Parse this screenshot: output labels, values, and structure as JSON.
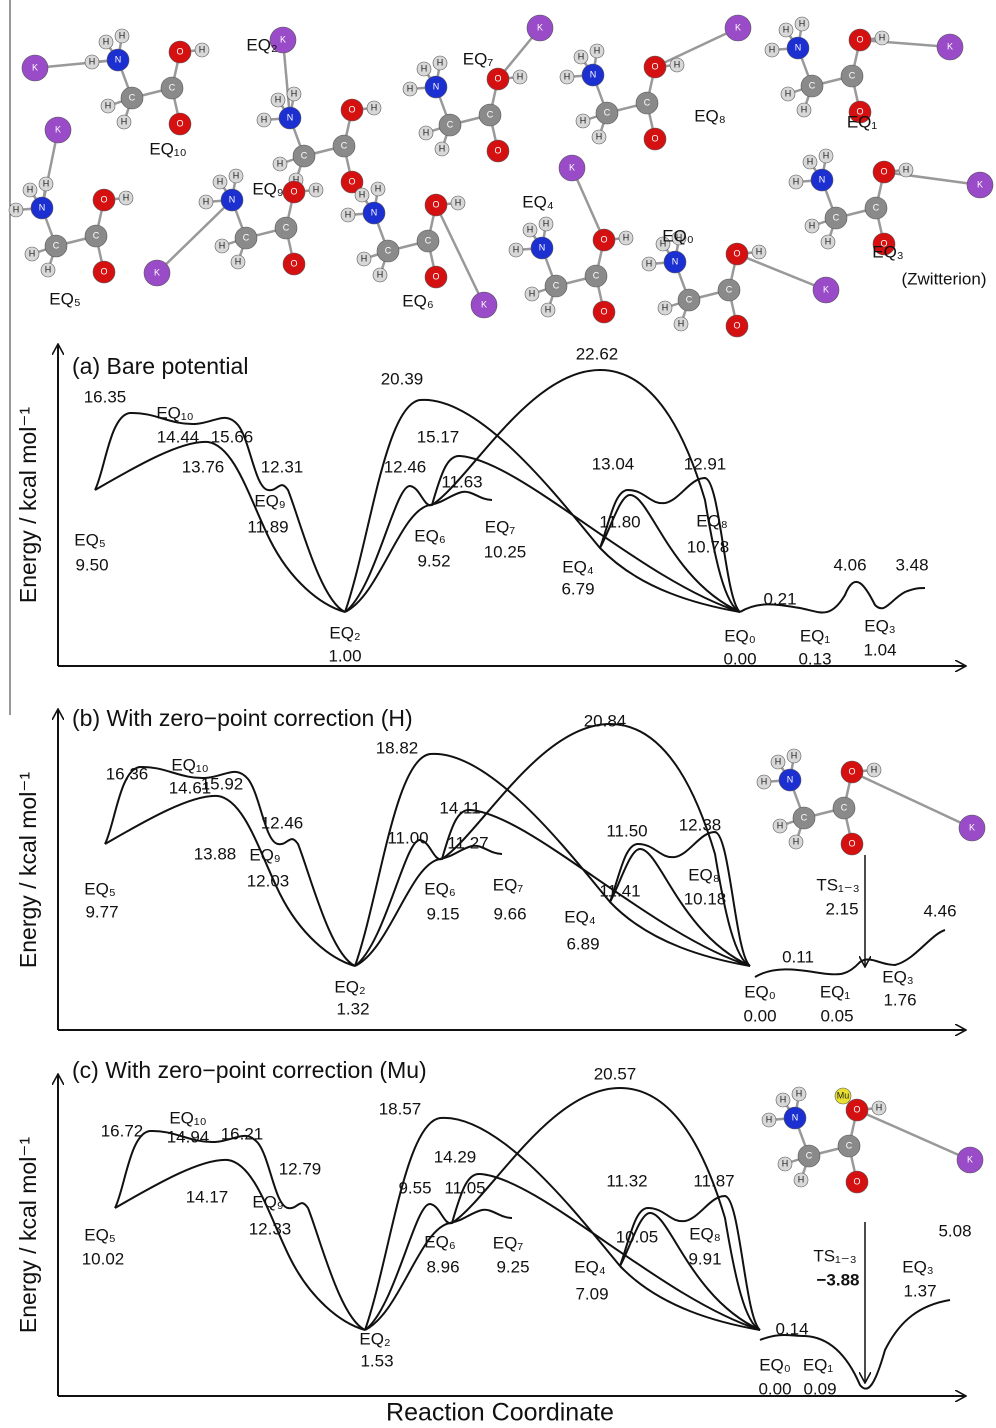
{
  "molecules": [
    {
      "label": "EQ₁₀",
      "atoms": [
        "K",
        "N",
        "H",
        "H",
        "H",
        "C",
        "H",
        "H",
        "C",
        "O",
        "O",
        "H"
      ]
    },
    {
      "label": "EQ₂",
      "atoms": [
        "K",
        "N",
        "H",
        "H",
        "H",
        "C",
        "H",
        "H",
        "C",
        "O",
        "O",
        "H"
      ]
    },
    {
      "label": "EQ₇",
      "atoms": [
        "K",
        "N",
        "H",
        "H",
        "H",
        "C",
        "H",
        "H",
        "C",
        "O",
        "O",
        "H"
      ]
    },
    {
      "label": "EQ₈",
      "atoms": [
        "K",
        "N",
        "H",
        "H",
        "H",
        "C",
        "H",
        "H",
        "C",
        "O",
        "O",
        "H"
      ]
    },
    {
      "label": "EQ₁",
      "atoms": [
        "K",
        "N",
        "H",
        "H",
        "H",
        "C",
        "H",
        "H",
        "C",
        "O",
        "O",
        "H"
      ]
    },
    {
      "label": "EQ₅",
      "atoms": [
        "K",
        "N",
        "H",
        "H",
        "H",
        "C",
        "H",
        "H",
        "C",
        "O",
        "O",
        "H"
      ]
    },
    {
      "label": "EQ₉",
      "atoms": [
        "K",
        "N",
        "H",
        "H",
        "H",
        "C",
        "H",
        "H",
        "C",
        "O",
        "O",
        "H"
      ]
    },
    {
      "label": "EQ₆",
      "atoms": [
        "K",
        "N",
        "H",
        "H",
        "H",
        "C",
        "H",
        "H",
        "C",
        "O",
        "O",
        "H"
      ]
    },
    {
      "label": "EQ₄",
      "atoms": [
        "K",
        "N",
        "H",
        "H",
        "H",
        "C",
        "H",
        "H",
        "C",
        "O",
        "O",
        "H"
      ]
    },
    {
      "label": "EQ₀",
      "atoms": [
        "K",
        "N",
        "H",
        "H",
        "H",
        "C",
        "H",
        "H",
        "C",
        "O",
        "O",
        "H"
      ]
    },
    {
      "label": "EQ₃",
      "atoms": [
        "K",
        "N",
        "H",
        "H",
        "H",
        "C",
        "H",
        "H",
        "C",
        "O",
        "O",
        "H"
      ]
    }
  ],
  "zwitterion_note": "(Zwitterion)",
  "panels": [
    {
      "title": "(a) Bare  potential",
      "y_label": "Energy / kcal mol⁻¹",
      "labels": [
        "16.35",
        "EQ₁₀",
        "14.44",
        "15.66",
        "12.31",
        "13.76",
        "EQ₉",
        "11.89",
        "EQ₅",
        "9.50",
        "20.39",
        "15.17",
        "12.46",
        "11.63",
        "EQ₆",
        "9.52",
        "EQ₇",
        "10.25",
        "22.62",
        "13.04",
        "11.80",
        "12.91",
        "EQ₈",
        "10.78",
        "EQ₄",
        "6.79",
        "EQ₂",
        "1.00",
        "0.21",
        "4.06",
        "3.48",
        "EQ₀",
        "0.00",
        "EQ₁",
        "0.13",
        "EQ₃",
        "1.04"
      ]
    },
    {
      "title": "(b) With zero−point correction (H)",
      "y_label": "Energy / kcal mol⁻¹",
      "labels": [
        "16.36",
        "EQ₁₀",
        "14.61",
        "15.92",
        "12.46",
        "13.88",
        "EQ₉",
        "12.03",
        "EQ₅",
        "9.77",
        "18.82",
        "14.11",
        "11.00",
        "11.27",
        "EQ₆",
        "9.15",
        "EQ₇",
        "9.66",
        "20.84",
        "11.50",
        "11.41",
        "12.38",
        "EQ₈",
        "10.18",
        "EQ₄",
        "6.89",
        "EQ₂",
        "1.32",
        "0.11",
        "TS₁₋₃",
        "2.15",
        "4.46",
        "EQ₀",
        "0.00",
        "EQ₁",
        "0.05",
        "EQ₃",
        "1.76"
      ],
      "inset_atoms": [
        "K",
        "N",
        "H",
        "H",
        "H",
        "C",
        "H",
        "H",
        "C",
        "O",
        "O",
        "H"
      ]
    },
    {
      "title": "(c) With zero−point correction (Mu)",
      "y_label": "Energy / kcal mol⁻¹",
      "labels": [
        "16.72",
        "EQ₁₀",
        "14.94",
        "16.21",
        "12.79",
        "14.17",
        "EQ₉",
        "12.33",
        "EQ₅",
        "10.02",
        "18.57",
        "14.29",
        "9.55",
        "11.05",
        "EQ₆",
        "8.96",
        "EQ₇",
        "9.25",
        "20.57",
        "11.32",
        "10.05",
        "11.87",
        "EQ₈",
        "9.91",
        "EQ₄",
        "7.09",
        "EQ₂",
        "1.53",
        "0.14",
        "TS₁₋₃",
        "−3.88",
        "5.08",
        "EQ₀",
        "0.00",
        "EQ₁",
        "0.09",
        "EQ₃",
        "1.37"
      ],
      "inset_atoms": [
        "K",
        "N",
        "H",
        "H",
        "H",
        "C",
        "H",
        "H",
        "C",
        "O",
        "O",
        "H",
        "Mu"
      ]
    }
  ],
  "x_label": "Reaction Coordinate"
}
